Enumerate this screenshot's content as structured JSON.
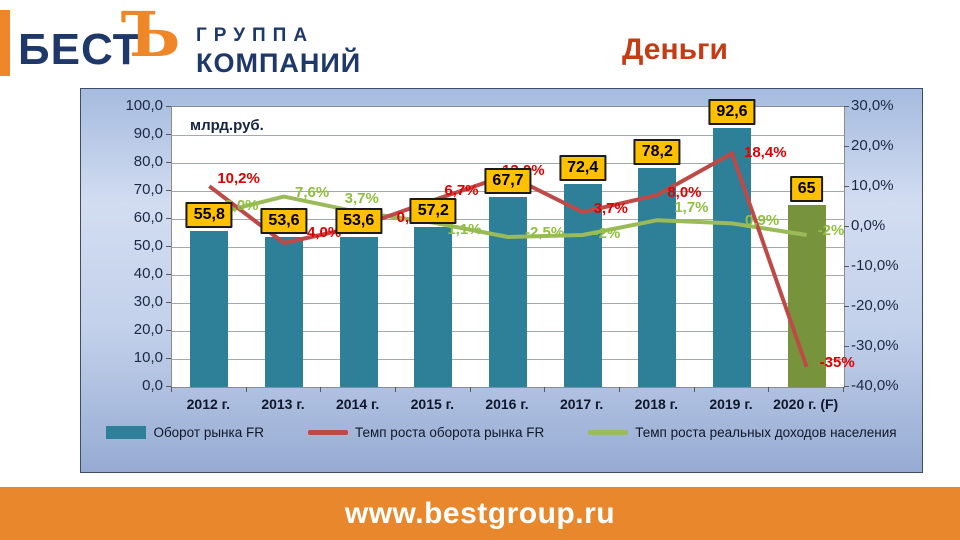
{
  "header": {
    "logo": {
      "text_main": "БЕСТ",
      "hard_sign": "Ъ",
      "line1": "ГРУППА",
      "line2": "КОМПАНИЙ",
      "navy_color": "#1D3869",
      "orange_color": "#EF8628"
    },
    "title": "Деньги",
    "title_color": "#C53B16"
  },
  "chart_data": {
    "type": "combo-bar-line",
    "unit_label": "млрд.руб.",
    "categories": [
      "2012 г.",
      "2013 г.",
      "2014 г.",
      "2015 г.",
      "2016 г.",
      "2017 г.",
      "2018 г.",
      "2019 г.",
      "2020 г. (F)"
    ],
    "series": [
      {
        "name": "Оборот рынка FR",
        "type": "bar",
        "axis": "left",
        "values": [
          55.8,
          53.6,
          53.6,
          57.2,
          67.7,
          72.4,
          78.2,
          92.6,
          65
        ],
        "labels": [
          "55,8",
          "53,6",
          "53,6",
          "57,2",
          "67,7",
          "72,4",
          "78,2",
          "92,6",
          "65"
        ],
        "color": "#2E8098",
        "last_bar_color": "#77933C"
      },
      {
        "name": "Темп роста оборота рынка FR",
        "type": "line",
        "axis": "right",
        "values": [
          10.2,
          -4.0,
          0.1,
          6.7,
          13.0,
          3.7,
          8.0,
          18.4,
          -35
        ],
        "labels": [
          "10,2%",
          "-4,0%",
          "0,1%",
          "6,7%",
          "13,0%",
          "3,7%",
          "8,0%",
          "18,4%",
          "-35%"
        ],
        "color": "#BE4A47",
        "label_color": "#E00000"
      },
      {
        "name": "Темп роста реальных доходов населения",
        "type": "line",
        "axis": "right",
        "values": [
          3.0,
          7.6,
          3.7,
          1.1,
          -2.5,
          -2.0,
          1.7,
          0.9,
          -2.0
        ],
        "labels": [
          "3,0%",
          "7,6%",
          "3,7%",
          "1,1%",
          "-2,5%",
          "-2%",
          "1,7%",
          "0,9%",
          "-2%"
        ],
        "color": "#9BBB59",
        "label_color": "#8FBF3F"
      }
    ],
    "left_axis": {
      "min": 0,
      "max": 100,
      "ticks": [
        "100,0",
        "90,0",
        "80,0",
        "70,0",
        "60,0",
        "50,0",
        "40,0",
        "30,0",
        "20,0",
        "10,0",
        "0,0"
      ]
    },
    "right_axis": {
      "min": -40,
      "max": 30,
      "ticks": [
        "30,0%",
        "20,0%",
        "10,0%",
        "0,0%",
        "-10,0%",
        "-20,0%",
        "-30,0%",
        "-40,0%"
      ]
    },
    "value_box_color": "#FFC000",
    "grid": "on",
    "legend_position": "bottom"
  },
  "footer": {
    "url": "www.bestgroup.ru",
    "band_color": "#E8872B"
  }
}
